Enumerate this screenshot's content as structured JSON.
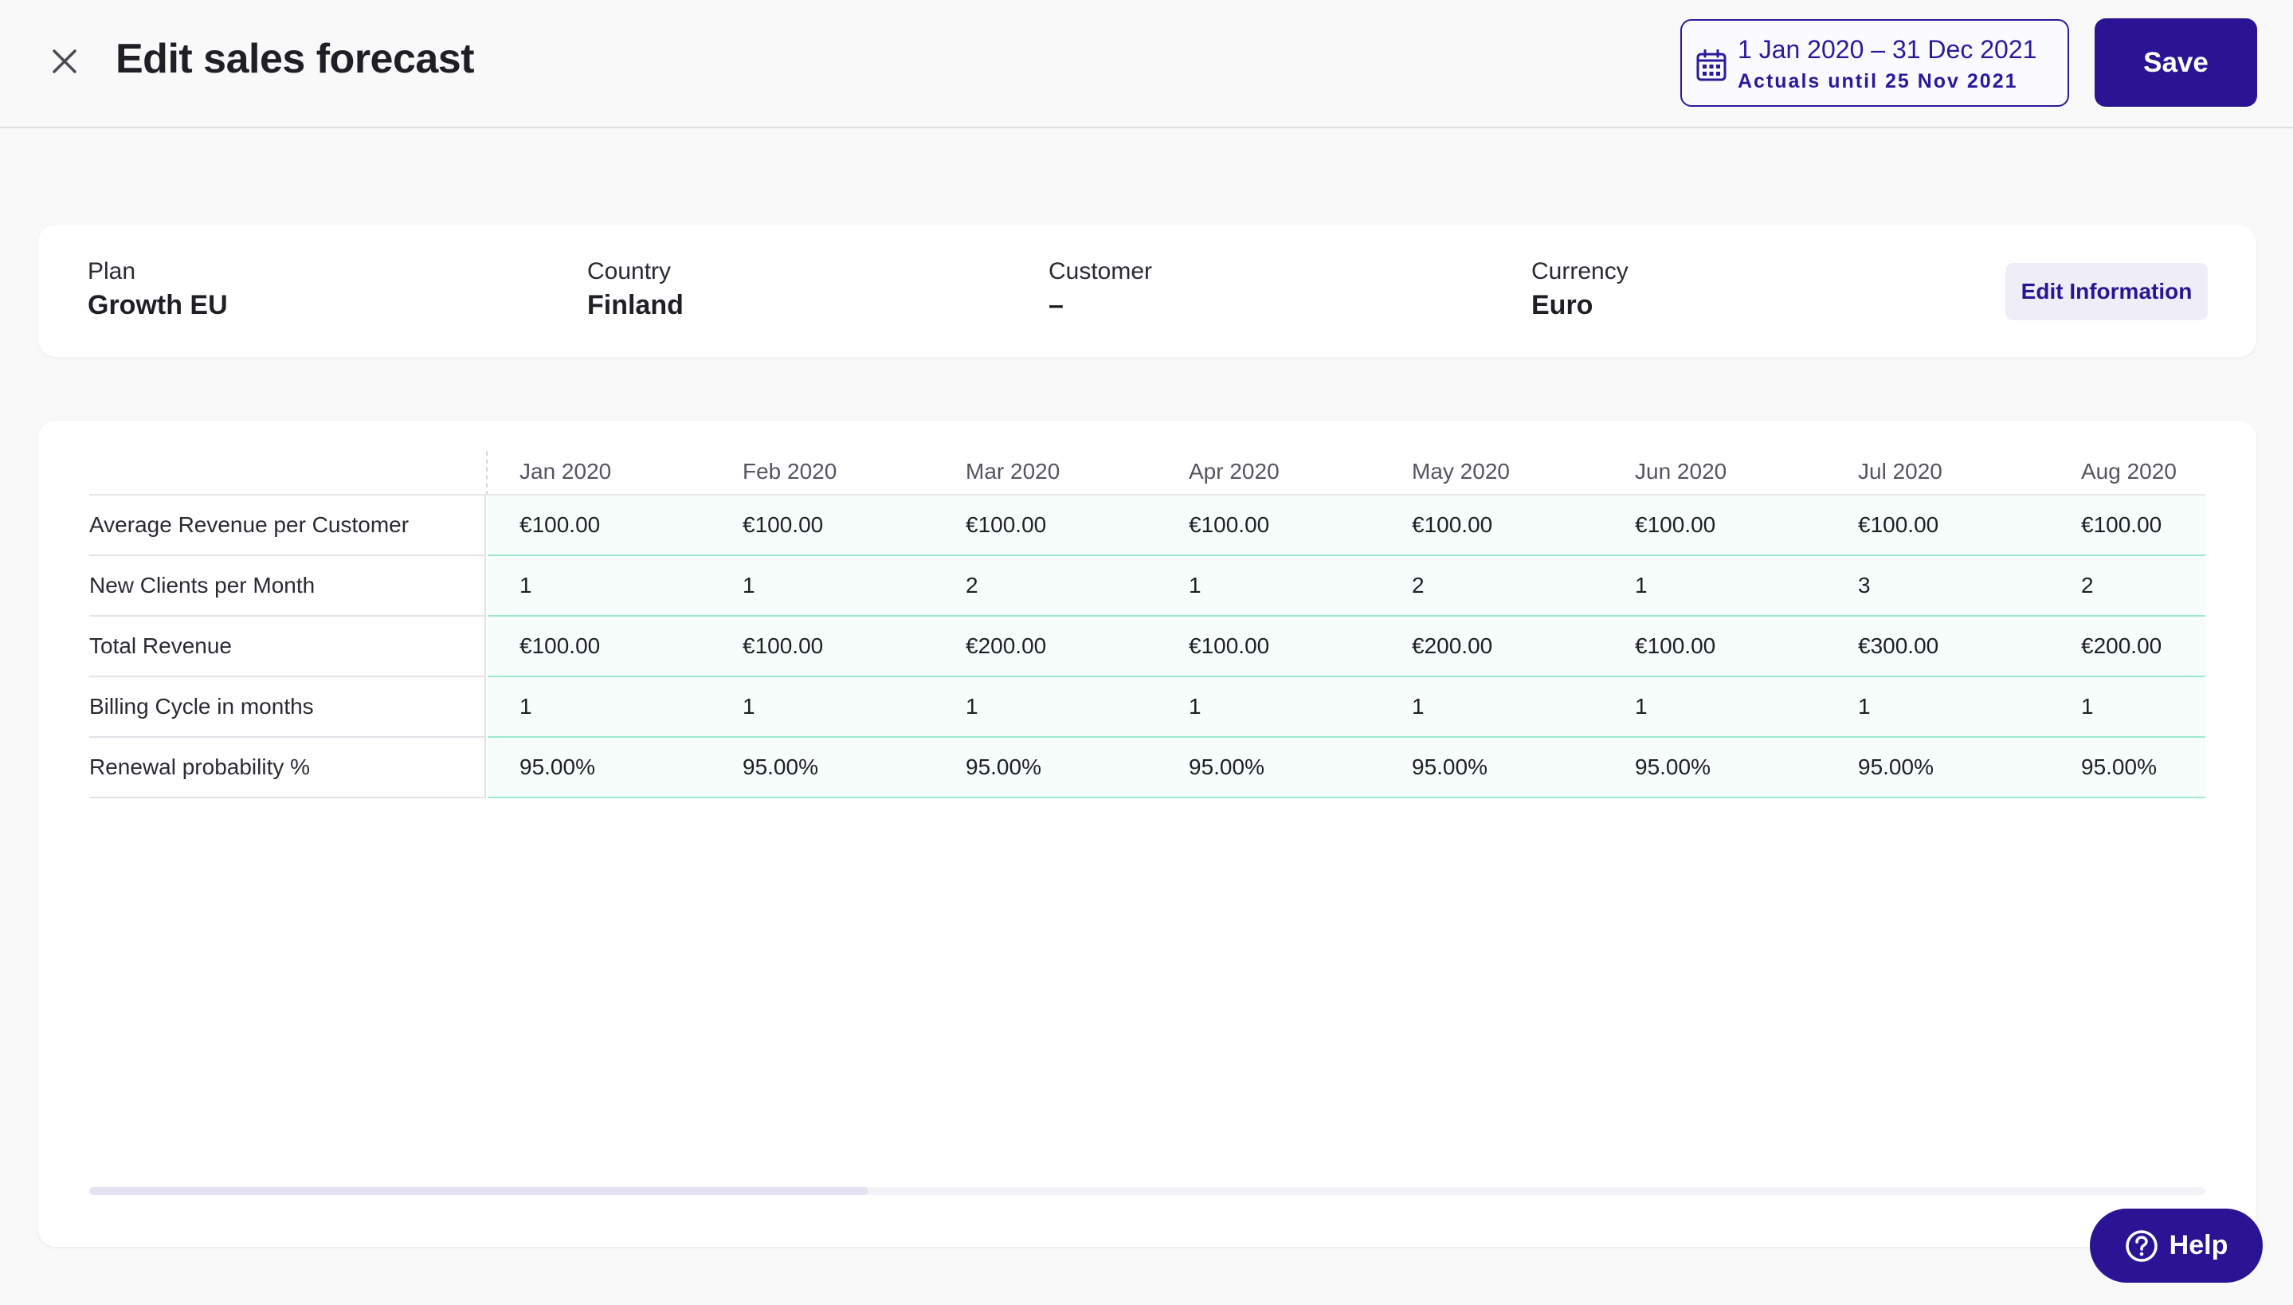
{
  "header": {
    "title": "Edit sales forecast",
    "date_range": "1 Jan 2020 – 31 Dec 2021",
    "actuals_until": "Actuals until 25 Nov 2021",
    "save_label": "Save"
  },
  "info": {
    "fields": [
      {
        "label": "Plan",
        "value": "Growth EU"
      },
      {
        "label": "Country",
        "value": "Finland"
      },
      {
        "label": "Customer",
        "value": "–"
      },
      {
        "label": "Currency",
        "value": "Euro"
      }
    ],
    "edit_label": "Edit Information"
  },
  "table": {
    "months": [
      "Jan 2020",
      "Feb 2020",
      "Mar 2020",
      "Apr 2020",
      "May 2020",
      "Jun 2020",
      "Jul 2020",
      "Aug 2020"
    ],
    "rows": [
      {
        "label": "Average Revenue per Customer",
        "values": [
          "€100.00",
          "€100.00",
          "€100.00",
          "€100.00",
          "€100.00",
          "€100.00",
          "€100.00",
          "€100.00"
        ]
      },
      {
        "label": "New Clients per Month",
        "values": [
          "1",
          "1",
          "2",
          "1",
          "2",
          "1",
          "3",
          "2"
        ]
      },
      {
        "label": "Total Revenue",
        "values": [
          "€100.00",
          "€100.00",
          "€200.00",
          "€100.00",
          "€200.00",
          "€100.00",
          "€300.00",
          "€200.00"
        ]
      },
      {
        "label": "Billing Cycle in months",
        "values": [
          "1",
          "1",
          "1",
          "1",
          "1",
          "1",
          "1",
          "1"
        ]
      },
      {
        "label": "Renewal probability %",
        "values": [
          "95.00%",
          "95.00%",
          "95.00%",
          "95.00%",
          "95.00%",
          "95.00%",
          "95.00%",
          "95.00%"
        ]
      }
    ]
  },
  "help": {
    "label": "Help"
  },
  "colors": {
    "brand": "#2b1494",
    "row_tint": "#f7fdfb",
    "row_rule": "#9ee8cf"
  },
  "icons": {
    "close": "close-icon",
    "calendar": "calendar-icon",
    "help": "question-icon"
  }
}
